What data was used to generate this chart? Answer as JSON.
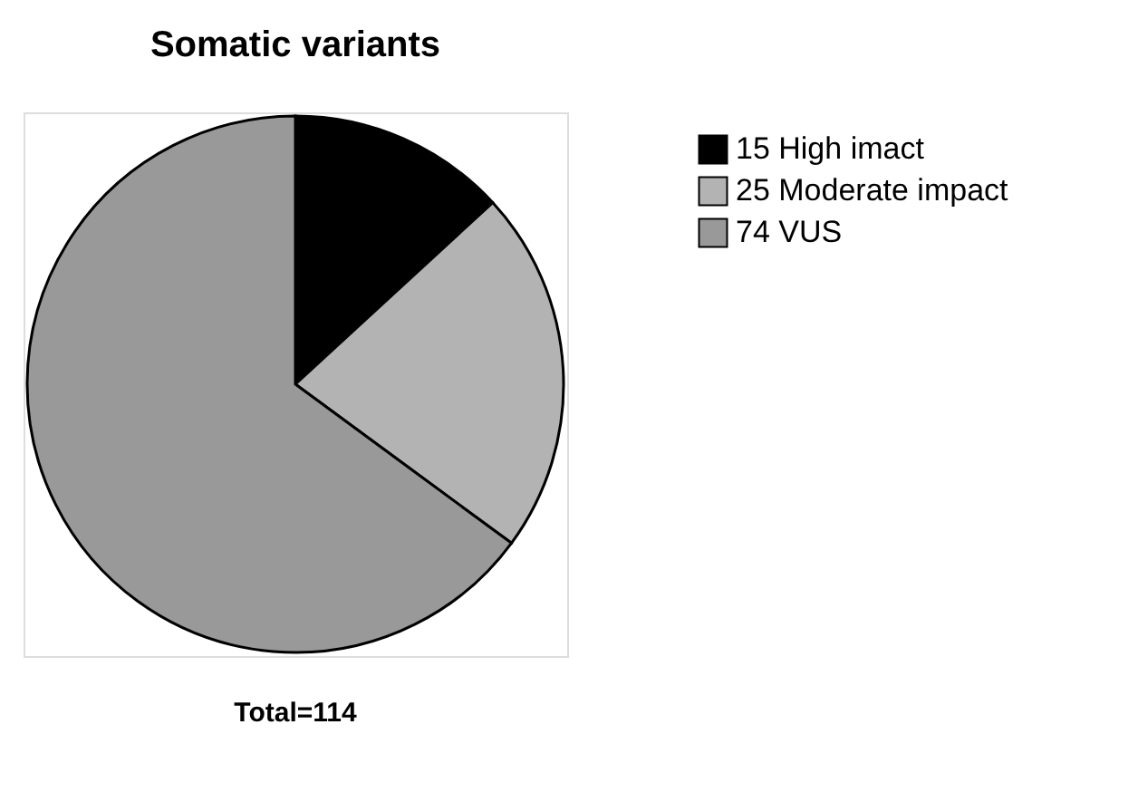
{
  "chart_data": {
    "type": "pie",
    "title": "Somatic variants",
    "categories": [
      "15 High imact",
      "25 Moderate impact",
      "74 VUS"
    ],
    "values": [
      15,
      25,
      74
    ],
    "colors": [
      "#000000",
      "#b3b3b3",
      "#999999"
    ],
    "legend": "top right",
    "annotations": [
      "Total=114"
    ]
  }
}
